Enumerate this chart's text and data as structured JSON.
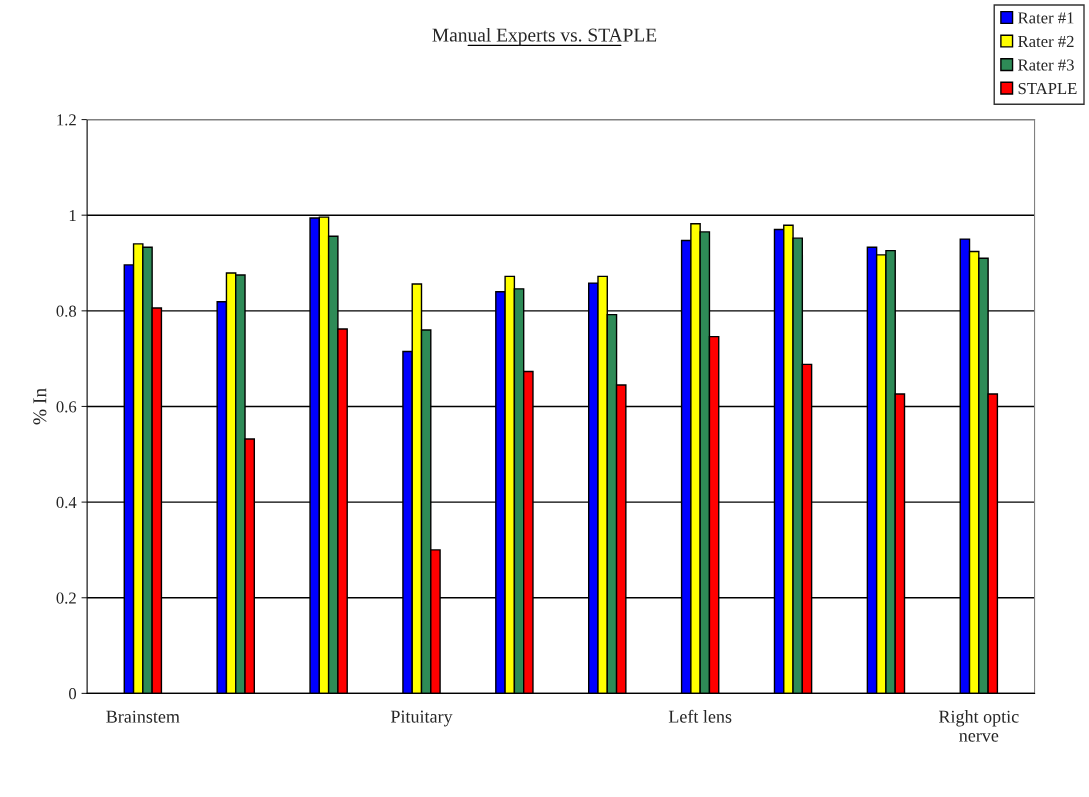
{
  "chart_data": {
    "type": "bar",
    "title": "Manual Experts vs. STAPLE",
    "ylabel": "% In",
    "categories": [
      "Brainstem",
      null,
      null,
      "Pituitary",
      null,
      null,
      "Left lens",
      null,
      null,
      "Right optic\nnerve"
    ],
    "series": [
      {
        "name": "Rater #1",
        "color": "#0000ff",
        "values": [
          0.896,
          0.819,
          0.994,
          0.715,
          0.84,
          0.858,
          0.947,
          0.97,
          0.933,
          0.95
        ]
      },
      {
        "name": "Rater #2",
        "color": "#ffff00",
        "values": [
          0.94,
          0.879,
          0.996,
          0.856,
          0.872,
          0.872,
          0.982,
          0.979,
          0.917,
          0.924
        ]
      },
      {
        "name": "Rater #3",
        "color": "#2e8b57",
        "values": [
          0.933,
          0.875,
          0.956,
          0.76,
          0.846,
          0.792,
          0.965,
          0.952,
          0.926,
          0.91
        ]
      },
      {
        "name": "STAPLE",
        "color": "#ff0000",
        "values": [
          0.806,
          0.532,
          0.762,
          0.3,
          0.673,
          0.645,
          0.746,
          0.688,
          0.626,
          0.626
        ]
      }
    ],
    "ylim": [
      0,
      1.2
    ],
    "yticks": [
      0,
      0.2,
      0.4,
      0.6,
      0.8,
      1,
      1.2
    ],
    "grid": "y",
    "legend": "top right"
  }
}
